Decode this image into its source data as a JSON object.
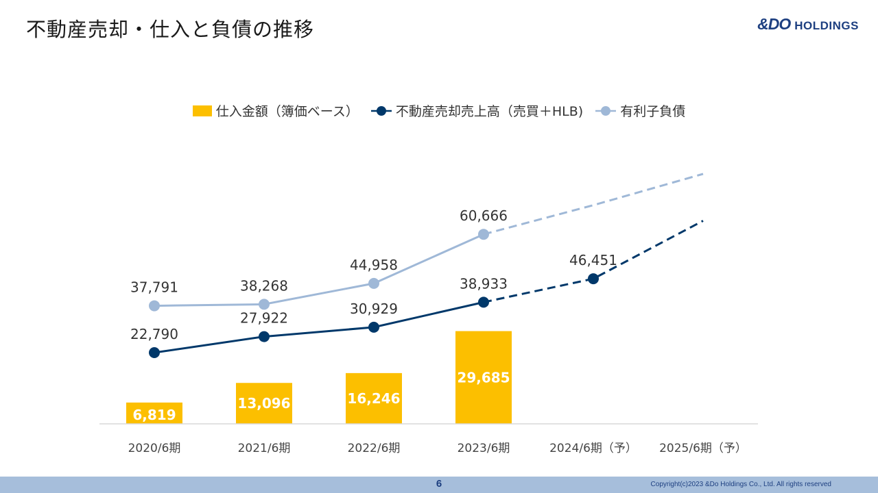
{
  "header": {
    "title": "不動産売却・仕入と負債の推移",
    "logo_mark": "&DO",
    "logo_text": "HOLDINGS"
  },
  "legend": {
    "purchase": "仕入金額（簿価ベース）",
    "sales": "不動産売却売上高（売買＋HLB)",
    "debt": "有利子負債"
  },
  "colors": {
    "purchase_bar": "#fcbf00",
    "sales_line": "#00386a",
    "debt_line": "#9fb8d7",
    "axis": "#d9d9d9",
    "footer": "#a6bedb"
  },
  "chart_data": {
    "type": "bar+line",
    "categories": [
      "2020/6期",
      "2021/6期",
      "2022/6期",
      "2023/6期",
      "2024/6期（予）",
      "2025/6期（予）"
    ],
    "series": [
      {
        "name": "仕入金額（簿価ベース）",
        "kind": "bar",
        "values": [
          6819,
          13096,
          16246,
          29685,
          null,
          null
        ],
        "labels": [
          "6,819",
          "13,096",
          "16,246",
          "29,685",
          "",
          ""
        ]
      },
      {
        "name": "不動産売却売上高（売買＋HLB)",
        "kind": "line",
        "values": [
          22790,
          27922,
          30929,
          38933,
          46451,
          65000
        ],
        "labels": [
          "22,790",
          "27,922",
          "30,929",
          "38,933",
          "46,451",
          ""
        ],
        "dashed_from_index": 3,
        "marker_until_index": 4
      },
      {
        "name": "有利子負債",
        "kind": "line",
        "values": [
          37791,
          38268,
          44958,
          60666,
          70000,
          80000
        ],
        "labels": [
          "37,791",
          "38,268",
          "44,958",
          "60,666",
          "",
          ""
        ],
        "dashed_from_index": 3,
        "marker_until_index": 3
      }
    ],
    "ylim": [
      0,
      80000
    ],
    "grid": false,
    "legend_position": "top"
  },
  "footer": {
    "page_number": "6",
    "copyright": "Copyright(c)2023 &Do Holdings Co., Ltd. All rights reserved"
  }
}
